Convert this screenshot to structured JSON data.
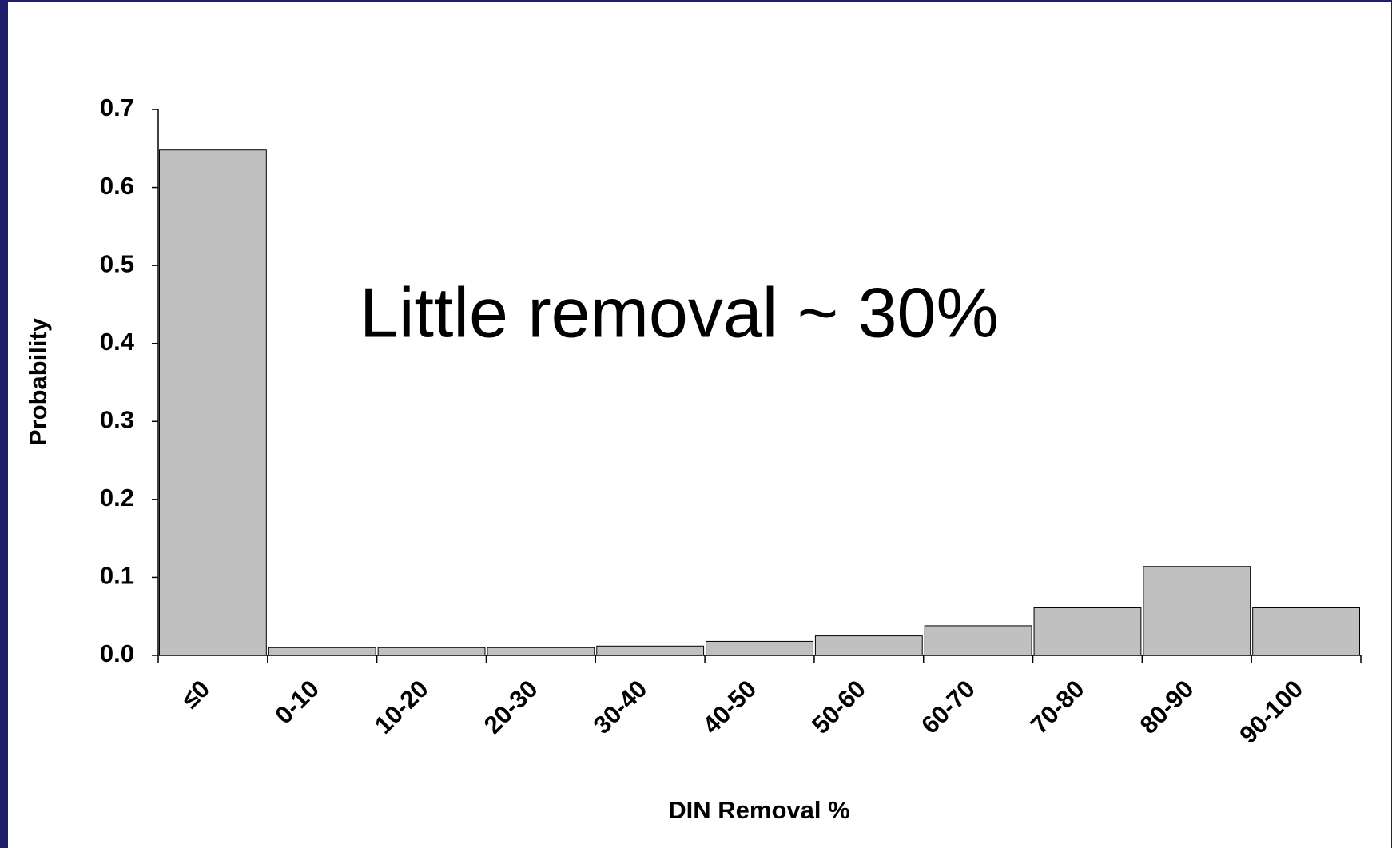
{
  "chart_data": {
    "type": "bar",
    "annotation": "Little removal ~ 30%",
    "x_label": "DIN Removal %",
    "y_label": "Probability",
    "categories": [
      "≤0",
      "0-10",
      "10-20",
      "20-30",
      "30-40",
      "40-50",
      "50-60",
      "60-70",
      "70-80",
      "80-90",
      "90-100"
    ],
    "values": [
      0.648,
      0.01,
      0.01,
      0.01,
      0.012,
      0.018,
      0.025,
      0.038,
      0.061,
      0.114,
      0.061
    ],
    "color": "#c0c0c0",
    "ylim": [
      0,
      0.7
    ],
    "yticks": [
      {
        "value": 0,
        "label": "0.0"
      },
      0.1,
      0.2,
      0.3,
      0.4,
      0.5,
      0.6,
      0.7
    ]
  }
}
